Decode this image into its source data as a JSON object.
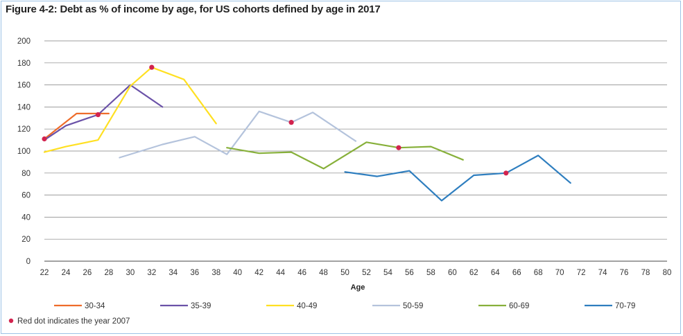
{
  "chart_data": {
    "type": "line",
    "title": "Figure 4-2: Debt as % of income by age, for US cohorts defined by age in 2017",
    "xlabel": "Age",
    "ylabel": "",
    "xlim": [
      22,
      80
    ],
    "ylim": [
      0,
      200
    ],
    "x_ticks": [
      22,
      24,
      26,
      28,
      30,
      32,
      34,
      36,
      38,
      40,
      42,
      44,
      46,
      48,
      50,
      52,
      54,
      56,
      58,
      60,
      62,
      64,
      66,
      68,
      70,
      72,
      74,
      76,
      78,
      80
    ],
    "y_ticks": [
      0,
      20,
      40,
      60,
      80,
      100,
      120,
      140,
      160,
      180,
      200
    ],
    "grid": "horizontal",
    "legend_position": "bottom",
    "series": [
      {
        "name": "30-34",
        "color": "#ee6c2a",
        "x": [
          22,
          25,
          28
        ],
        "y": [
          111,
          134,
          134
        ]
      },
      {
        "name": "35-39",
        "color": "#6b52a8",
        "x": [
          22,
          24,
          27,
          30,
          33
        ],
        "y": [
          110,
          123,
          133,
          160,
          140
        ]
      },
      {
        "name": "40-49",
        "color": "#ffe022",
        "x": [
          22,
          24,
          27,
          30,
          32,
          35,
          38
        ],
        "y": [
          99,
          104,
          110,
          159,
          176,
          165,
          125
        ]
      },
      {
        "name": "50-59",
        "color": "#b4c3dc",
        "x": [
          29,
          33,
          36,
          39,
          42,
          45,
          47,
          51
        ],
        "y": [
          94,
          106,
          113,
          97,
          136,
          126,
          135,
          109
        ]
      },
      {
        "name": "60-69",
        "color": "#87b03a",
        "x": [
          39,
          42,
          45,
          48,
          52,
          55,
          58,
          61
        ],
        "y": [
          103,
          98,
          99,
          84,
          108,
          103,
          104,
          92
        ]
      },
      {
        "name": "70-79",
        "color": "#2e7ebf",
        "x": [
          50,
          53,
          56,
          59,
          62,
          65,
          68,
          71
        ],
        "y": [
          81,
          77,
          82,
          55,
          78,
          80,
          96,
          71
        ]
      }
    ],
    "markers": {
      "color": "#d2234e",
      "label": "Red dot indicates the year 2007",
      "points": [
        {
          "x": 22,
          "y": 111
        },
        {
          "x": 27,
          "y": 133
        },
        {
          "x": 32,
          "y": 176
        },
        {
          "x": 45,
          "y": 126
        },
        {
          "x": 55,
          "y": 103
        },
        {
          "x": 65,
          "y": 80
        }
      ]
    },
    "grid_color": "#7f7f7f",
    "axis_color": "#444444"
  }
}
